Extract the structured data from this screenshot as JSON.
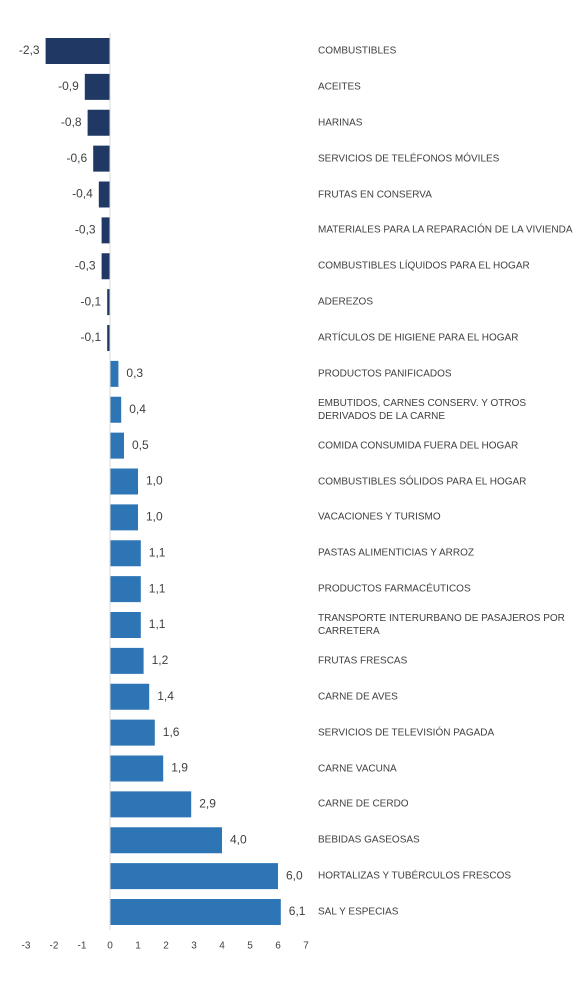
{
  "chart_data": {
    "type": "barh",
    "categories": [
      "COMBUSTIBLES",
      "ACEITES",
      "HARINAS",
      "SERVICIOS DE TELÉFONOS MÓVILES",
      "FRUTAS EN CONSERVA",
      "MATERIALES PARA LA REPARACIÓN DE LA VIVIENDA",
      "COMBUSTIBLES LÍQUIDOS PARA EL HOGAR",
      "ADEREZOS",
      "ARTÍCULOS DE HIGIENE PARA EL HOGAR",
      "PRODUCTOS PANIFICADOS",
      "EMBUTIDOS, CARNES CONSERV. Y OTROS DERIVADOS DE LA CARNE",
      "COMIDA CONSUMIDA FUERA DEL HOGAR",
      "COMBUSTIBLES SÓLIDOS PARA EL HOGAR",
      "VACACIONES Y TURISMO",
      "PASTAS ALIMENTICIAS Y ARROZ",
      "PRODUCTOS FARMACÉUTICOS",
      "TRANSPORTE INTERURBANO DE PASAJEROS POR CARRETERA",
      "FRUTAS FRESCAS",
      "CARNE DE AVES",
      "SERVICIOS DE TELEVISIÓN PAGADA",
      "CARNE VACUNA",
      "CARNE DE CERDO",
      "BEBIDAS GASEOSAS",
      "HORTALIZAS Y TUBÉRCULOS FRESCOS",
      "SAL Y ESPECIAS"
    ],
    "values": [
      -2.3,
      -0.9,
      -0.8,
      -0.6,
      -0.4,
      -0.3,
      -0.3,
      -0.1,
      -0.1,
      0.3,
      0.4,
      0.5,
      1.0,
      1.0,
      1.1,
      1.1,
      1.1,
      1.2,
      1.4,
      1.6,
      1.9,
      2.9,
      4.0,
      6.0,
      6.1
    ],
    "value_labels": [
      "-2,3",
      "-0,9",
      "-0,8",
      "-0,6",
      "-0,4",
      "-0,3",
      "-0,3",
      "-0,1",
      "-0,1",
      "0,3",
      "0,4",
      "0,5",
      "1,0",
      "1,0",
      "1,1",
      "1,1",
      "1,1",
      "1,2",
      "1,4",
      "1,6",
      "1,9",
      "2,9",
      "4,0",
      "6,0",
      "6,1"
    ],
    "color": "#2e75b6",
    "negative_color": "#203864",
    "xlim": [
      -3,
      7
    ],
    "xticks": [
      -3,
      -2,
      -1,
      0,
      1,
      2,
      3,
      4,
      5,
      6,
      7
    ]
  }
}
